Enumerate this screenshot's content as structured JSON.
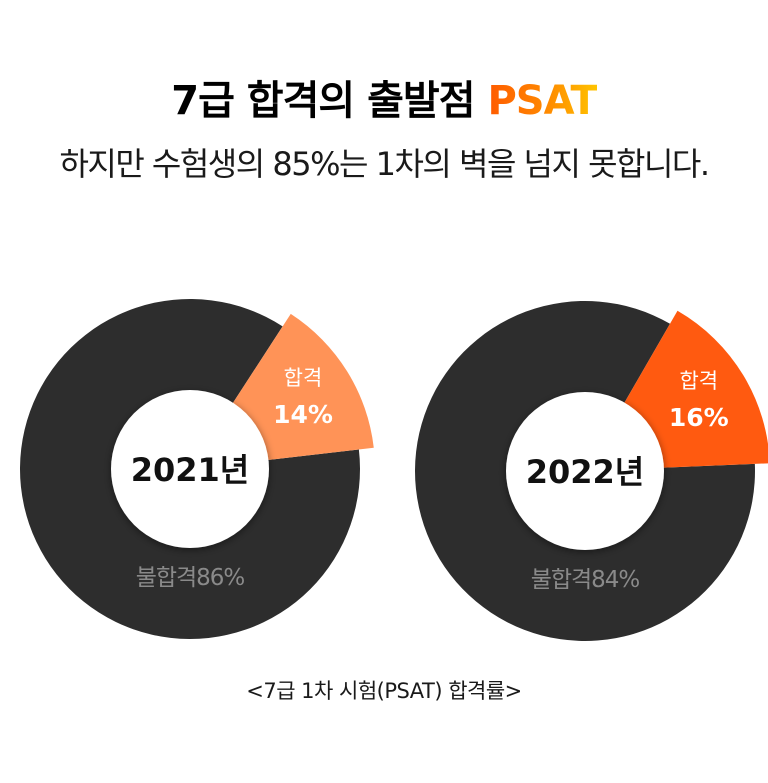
{
  "headline": {
    "part1": "7급 합격의 출발점 ",
    "part2": "PSAT"
  },
  "subheadline": "하지만 수험생의 85%는 1차의 벽을 넘지 못합니다.",
  "caption": "<7급 1차 시험(PSAT) 합격률>",
  "colors": {
    "fail": "#2d2d2d",
    "pass_2021": "#ff9357",
    "pass_2022": "#ff5a10",
    "fail_label": "#8a8a8a",
    "center": "#ffffff"
  },
  "chart_data": [
    {
      "type": "pie",
      "title": "2021년",
      "slices": [
        {
          "label": "합격",
          "value": 14,
          "value_label": "14%"
        },
        {
          "label": "불합격",
          "value": 86,
          "value_label": "86%"
        }
      ]
    },
    {
      "type": "pie",
      "title": "2022년",
      "slices": [
        {
          "label": "합격",
          "value": 16,
          "value_label": "16%"
        },
        {
          "label": "불합격",
          "value": 84,
          "value_label": "84%"
        }
      ]
    }
  ]
}
